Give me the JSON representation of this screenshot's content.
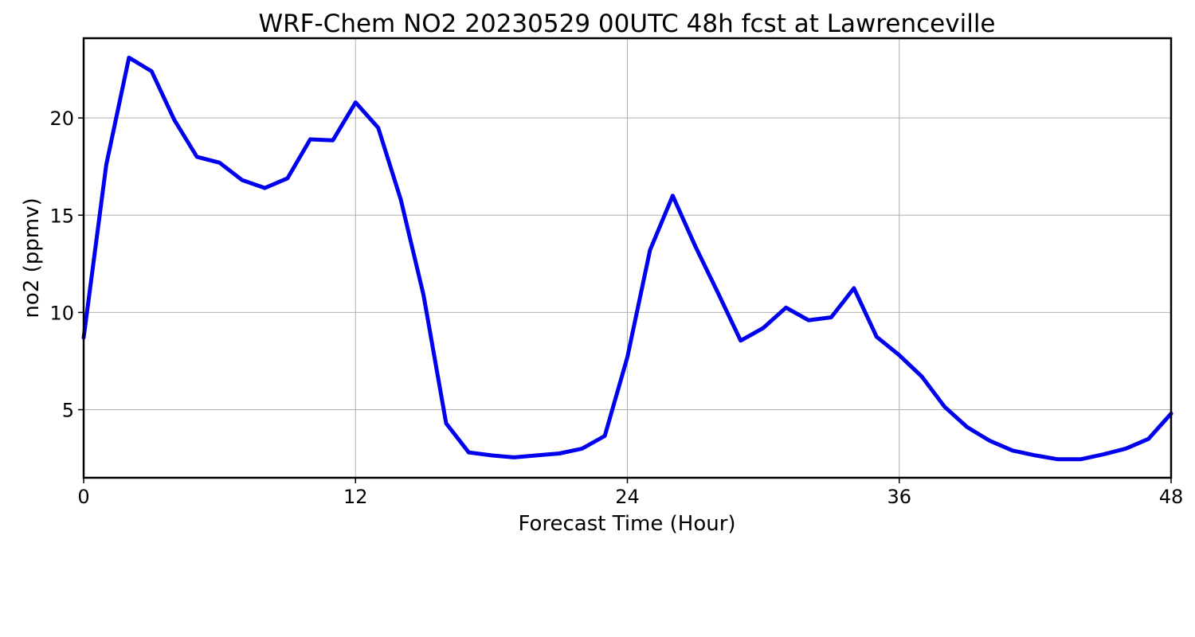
{
  "chart_data": {
    "type": "line",
    "title": "WRF-Chem NO2  20230529 00UTC 48h fcst at Lawrenceville",
    "xlabel": "Forecast Time (Hour)",
    "ylabel": "no2  (ppmv)",
    "xlim": [
      0,
      48
    ],
    "ylim": [
      1.5,
      24.1
    ],
    "xticks": [
      0,
      12,
      24,
      36,
      48
    ],
    "xtick_labels": [
      "0",
      "12",
      "24",
      "36",
      "48"
    ],
    "yticks": [
      5,
      10,
      15,
      20
    ],
    "ytick_labels": [
      "5",
      "10",
      "15",
      "20"
    ],
    "grid": true,
    "legend": "none",
    "series": [
      {
        "color": "#0000ee",
        "x": [
          0,
          1,
          2,
          3,
          4,
          5,
          6,
          7,
          8,
          9,
          10,
          11,
          12,
          13,
          14,
          15,
          16,
          17,
          18,
          19,
          20,
          21,
          22,
          23,
          24,
          25,
          26,
          27,
          28,
          29,
          30,
          31,
          32,
          33,
          34,
          35,
          36,
          37,
          38,
          39,
          40,
          41,
          42,
          43,
          44,
          45,
          46,
          47,
          48
        ],
        "y": [
          8.7,
          17.6,
          23.1,
          22.4,
          19.9,
          18.0,
          17.7,
          16.8,
          16.4,
          16.9,
          18.9,
          18.85,
          20.8,
          19.5,
          15.8,
          10.9,
          4.3,
          2.8,
          2.65,
          2.55,
          2.65,
          2.75,
          3.0,
          3.65,
          7.7,
          13.2,
          16.0,
          13.4,
          11.0,
          8.55,
          9.2,
          10.25,
          9.6,
          9.75,
          11.25,
          8.75,
          7.8,
          6.7,
          5.15,
          4.1,
          3.4,
          2.9,
          2.65,
          2.45,
          2.45,
          2.7,
          3.0,
          3.5,
          4.8
        ]
      }
    ]
  }
}
